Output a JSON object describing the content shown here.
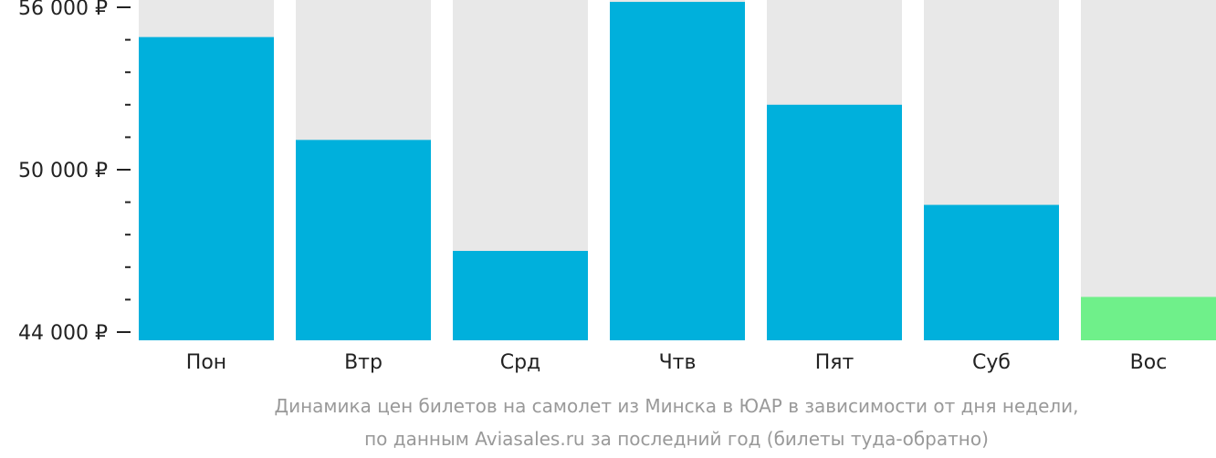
{
  "chart_data": {
    "type": "bar",
    "categories": [
      "Пон",
      "Втр",
      "Срд",
      "Чтв",
      "Пят",
      "Суб",
      "Вос"
    ],
    "values": [
      54900,
      51100,
      47000,
      56200,
      52400,
      48700,
      45300
    ],
    "ylim": [
      44000,
      56000
    ],
    "y_ticks": [
      {
        "value": 56000,
        "label": "56 000 ₽"
      },
      {
        "value": 50000,
        "label": "50 000 ₽"
      },
      {
        "value": 44000,
        "label": "44 000 ₽"
      }
    ],
    "y_minor_step": 1200,
    "highlight_index": 6,
    "colors": {
      "bar": "#00b0dc",
      "highlight": "#6ff08a",
      "track": "#e8e8e8",
      "axis": "#222222"
    },
    "grid": false,
    "legend": "none",
    "caption": [
      "Динамика цен билетов на самолет из Минска в ЮАР в зависимости от дня недели,",
      "по данным Aviasales.ru за последний год (билеты туда-обратно)"
    ]
  }
}
